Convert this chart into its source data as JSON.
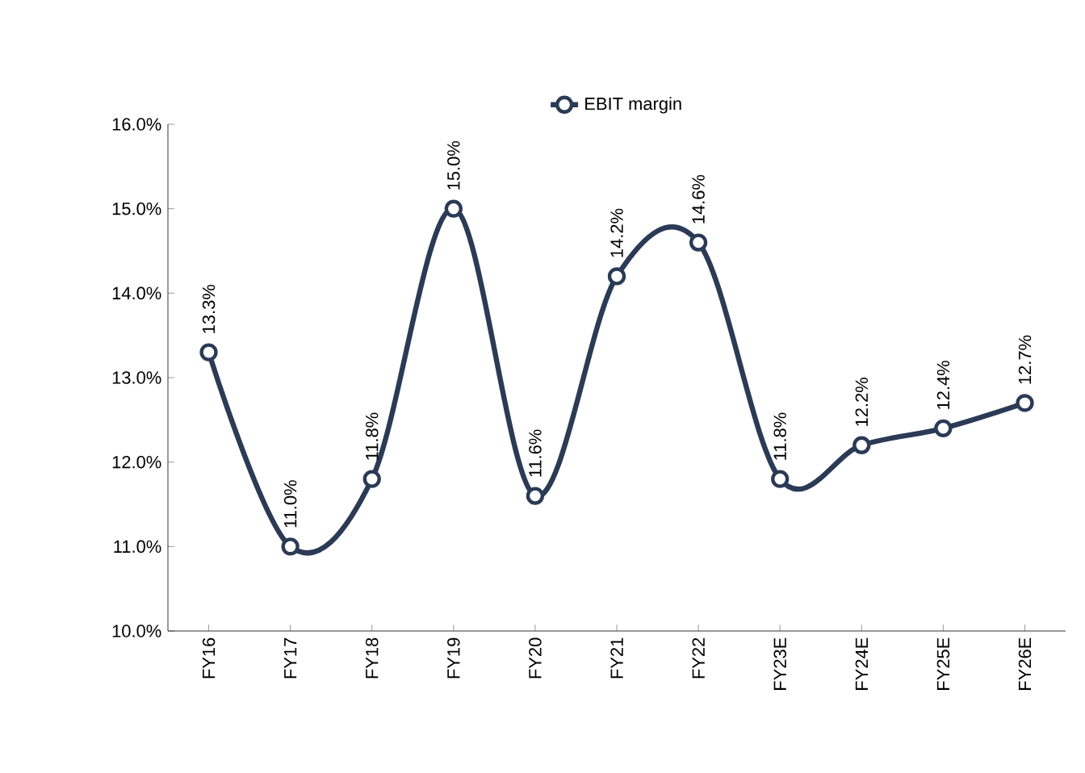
{
  "chart_data": {
    "type": "line",
    "categories": [
      "FY16",
      "FY17",
      "FY18",
      "FY19",
      "FY20",
      "FY21",
      "FY22",
      "FY23E",
      "FY24E",
      "FY25E",
      "FY26E"
    ],
    "series": [
      {
        "name": "EBIT margin",
        "color": "#2b3a55",
        "values": [
          13.3,
          11.0,
          11.8,
          15.0,
          11.6,
          14.2,
          14.6,
          11.8,
          12.2,
          12.4,
          12.7
        ],
        "value_labels": [
          "13.3%",
          "11.0%",
          "11.8%",
          "15.0%",
          "11.6%",
          "14.2%",
          "14.6%",
          "11.8%",
          "12.2%",
          "12.4%",
          "12.7%"
        ]
      }
    ],
    "ylim": [
      10,
      16
    ],
    "yticks": [
      {
        "value": 10,
        "label": "10.0%"
      },
      {
        "value": 11,
        "label": "11.0%"
      },
      {
        "value": 12,
        "label": "12.0%"
      },
      {
        "value": 13,
        "label": "13.0%"
      },
      {
        "value": 14,
        "label": "14.0%"
      },
      {
        "value": 15,
        "label": "15.0%"
      },
      {
        "value": 16,
        "label": "16.0%"
      }
    ],
    "marker": "circle",
    "line_style": "solid",
    "grid": false,
    "legend": "top"
  }
}
